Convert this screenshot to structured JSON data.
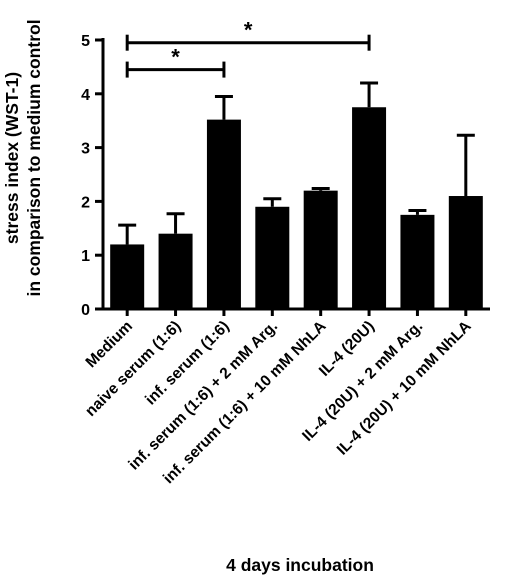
{
  "chart_data": {
    "type": "bar",
    "ylabel_lines": [
      "stress index (WST-1)",
      "in comparison to medium control"
    ],
    "xlabel": "4 days incubation",
    "ylim": [
      0,
      5
    ],
    "yticks": [
      0,
      1,
      2,
      3,
      4,
      5
    ],
    "categories": [
      "Medium",
      "naive serum (1:6)",
      "inf. serum (1:6)",
      "inf. serum (1:6) + 2 mM Arg.",
      "inf. serum (1:6) + 10 mM NhLA",
      "IL-4 (20U)",
      "IL-4 (20U) + 2 mM Arg.",
      "IL-4 (20U) + 10 mM NhLA"
    ],
    "values": [
      1.2,
      1.4,
      3.52,
      1.9,
      2.2,
      3.75,
      1.75,
      2.1
    ],
    "error_upper": [
      0.36,
      0.37,
      0.43,
      0.15,
      0.04,
      0.45,
      0.08,
      1.13
    ],
    "significance": [
      {
        "from": 0,
        "to": 2,
        "label": "*",
        "level": 4.45
      },
      {
        "from": 0,
        "to": 5,
        "label": "*",
        "level": 4.95
      }
    ],
    "grid": false,
    "bar_color": "#000000"
  }
}
